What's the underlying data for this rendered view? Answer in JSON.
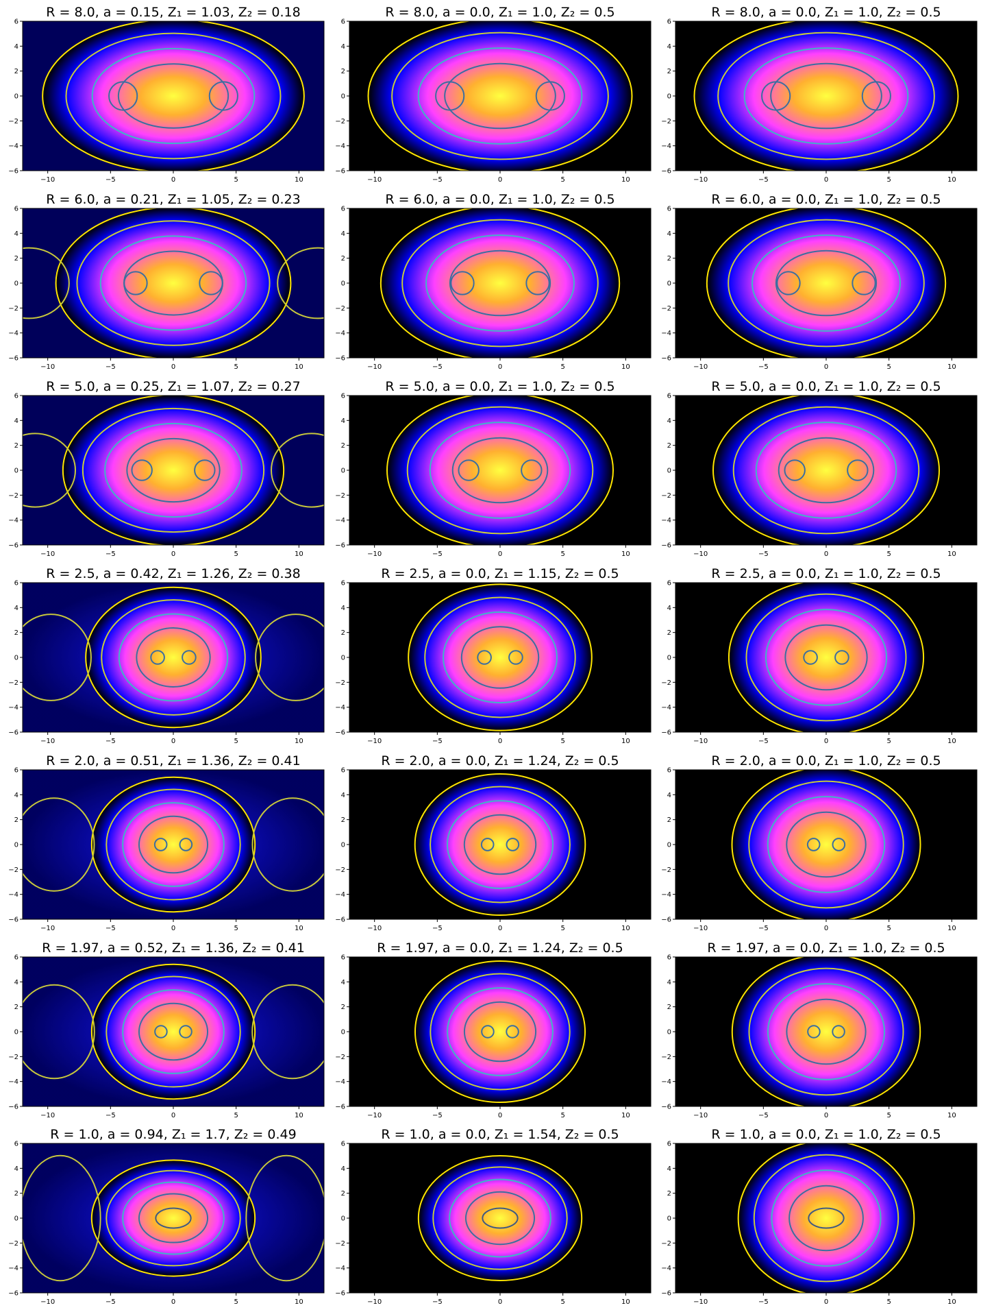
{
  "figure": {
    "type": "contour-grid",
    "rows": 7,
    "cols": 3,
    "background": "#000000",
    "colormap": [
      "#000000",
      "#0000ff",
      "#ff40ff",
      "#ffb030",
      "#ffff40"
    ],
    "contour_colors": [
      "#ffe600",
      "#c8c83c",
      "#40b4c8",
      "#3c6ea0",
      "#405a82"
    ],
    "axis": {
      "xlim": [
        -12,
        12
      ],
      "ylim": [
        -6,
        6
      ],
      "xticks": [
        -10,
        -5,
        0,
        5,
        10
      ],
      "yticks": [
        -6,
        -4,
        -2,
        0,
        2,
        4,
        6
      ]
    }
  },
  "chart_data": [
    {
      "type": "heatmap",
      "title": "R = 8.0, a = 0.15, Z₁ = 1.03, Z₂ = 0.18",
      "R": 8.0,
      "a": 0.15,
      "Z1": 1.03,
      "Z2": 0.18
    },
    {
      "type": "heatmap",
      "title": "R = 8.0, a = 0.0, Z₁ = 1.0, Z₂ = 0.5",
      "R": 8.0,
      "a": 0.0,
      "Z1": 1.0,
      "Z2": 0.5
    },
    {
      "type": "heatmap",
      "title": "R = 8.0, a = 0.0, Z₁ = 1.0, Z₂ = 0.5",
      "R": 8.0,
      "a": 0.0,
      "Z1": 1.0,
      "Z2": 0.5
    },
    {
      "type": "heatmap",
      "title": "R = 6.0, a = 0.21, Z₁ = 1.05, Z₂ = 0.23",
      "R": 6.0,
      "a": 0.21,
      "Z1": 1.05,
      "Z2": 0.23
    },
    {
      "type": "heatmap",
      "title": "R = 6.0, a = 0.0, Z₁ = 1.0, Z₂ = 0.5",
      "R": 6.0,
      "a": 0.0,
      "Z1": 1.0,
      "Z2": 0.5
    },
    {
      "type": "heatmap",
      "title": "R = 6.0, a = 0.0, Z₁ = 1.0, Z₂ = 0.5",
      "R": 6.0,
      "a": 0.0,
      "Z1": 1.0,
      "Z2": 0.5
    },
    {
      "type": "heatmap",
      "title": "R = 5.0, a = 0.25, Z₁ = 1.07, Z₂ = 0.27",
      "R": 5.0,
      "a": 0.25,
      "Z1": 1.07,
      "Z2": 0.27
    },
    {
      "type": "heatmap",
      "title": "R = 5.0, a = 0.0, Z₁ = 1.0, Z₂ = 0.5",
      "R": 5.0,
      "a": 0.0,
      "Z1": 1.0,
      "Z2": 0.5
    },
    {
      "type": "heatmap",
      "title": "R = 5.0, a = 0.0, Z₁ = 1.0, Z₂ = 0.5",
      "R": 5.0,
      "a": 0.0,
      "Z1": 1.0,
      "Z2": 0.5
    },
    {
      "type": "heatmap",
      "title": "R = 2.5, a = 0.42, Z₁ = 1.26, Z₂ = 0.38",
      "R": 2.5,
      "a": 0.42,
      "Z1": 1.26,
      "Z2": 0.38
    },
    {
      "type": "heatmap",
      "title": "R = 2.5, a = 0.0, Z₁ = 1.15, Z₂ = 0.5",
      "R": 2.5,
      "a": 0.0,
      "Z1": 1.15,
      "Z2": 0.5
    },
    {
      "type": "heatmap",
      "title": "R = 2.5, a = 0.0, Z₁ = 1.0, Z₂ = 0.5",
      "R": 2.5,
      "a": 0.0,
      "Z1": 1.0,
      "Z2": 0.5
    },
    {
      "type": "heatmap",
      "title": "R = 2.0, a = 0.51, Z₁ = 1.36, Z₂ = 0.41",
      "R": 2.0,
      "a": 0.51,
      "Z1": 1.36,
      "Z2": 0.41
    },
    {
      "type": "heatmap",
      "title": "R = 2.0, a = 0.0, Z₁ = 1.24, Z₂ = 0.5",
      "R": 2.0,
      "a": 0.0,
      "Z1": 1.24,
      "Z2": 0.5
    },
    {
      "type": "heatmap",
      "title": "R = 2.0, a = 0.0, Z₁ = 1.0, Z₂ = 0.5",
      "R": 2.0,
      "a": 0.0,
      "Z1": 1.0,
      "Z2": 0.5
    },
    {
      "type": "heatmap",
      "title": "R = 1.97, a = 0.52, Z₁ = 1.36, Z₂ = 0.41",
      "R": 1.97,
      "a": 0.52,
      "Z1": 1.36,
      "Z2": 0.41
    },
    {
      "type": "heatmap",
      "title": "R = 1.97, a = 0.0, Z₁ = 1.24, Z₂ = 0.5",
      "R": 1.97,
      "a": 0.0,
      "Z1": 1.24,
      "Z2": 0.5
    },
    {
      "type": "heatmap",
      "title": "R = 1.97, a = 0.0, Z₁ = 1.0, Z₂ = 0.5",
      "R": 1.97,
      "a": 0.0,
      "Z1": 1.0,
      "Z2": 0.5
    },
    {
      "type": "heatmap",
      "title": "R = 1.0, a = 0.94, Z₁ = 1.7, Z₂ = 0.49",
      "R": 1.0,
      "a": 0.94,
      "Z1": 1.7,
      "Z2": 0.49
    },
    {
      "type": "heatmap",
      "title": "R = 1.0, a = 0.0, Z₁ = 1.54, Z₂ = 0.5",
      "R": 1.0,
      "a": 0.0,
      "Z1": 1.54,
      "Z2": 0.5
    },
    {
      "type": "heatmap",
      "title": "R = 1.0, a = 0.0, Z₁ = 1.0, Z₂ = 0.5",
      "R": 1.0,
      "a": 0.0,
      "Z1": 1.0,
      "Z2": 0.5
    }
  ]
}
